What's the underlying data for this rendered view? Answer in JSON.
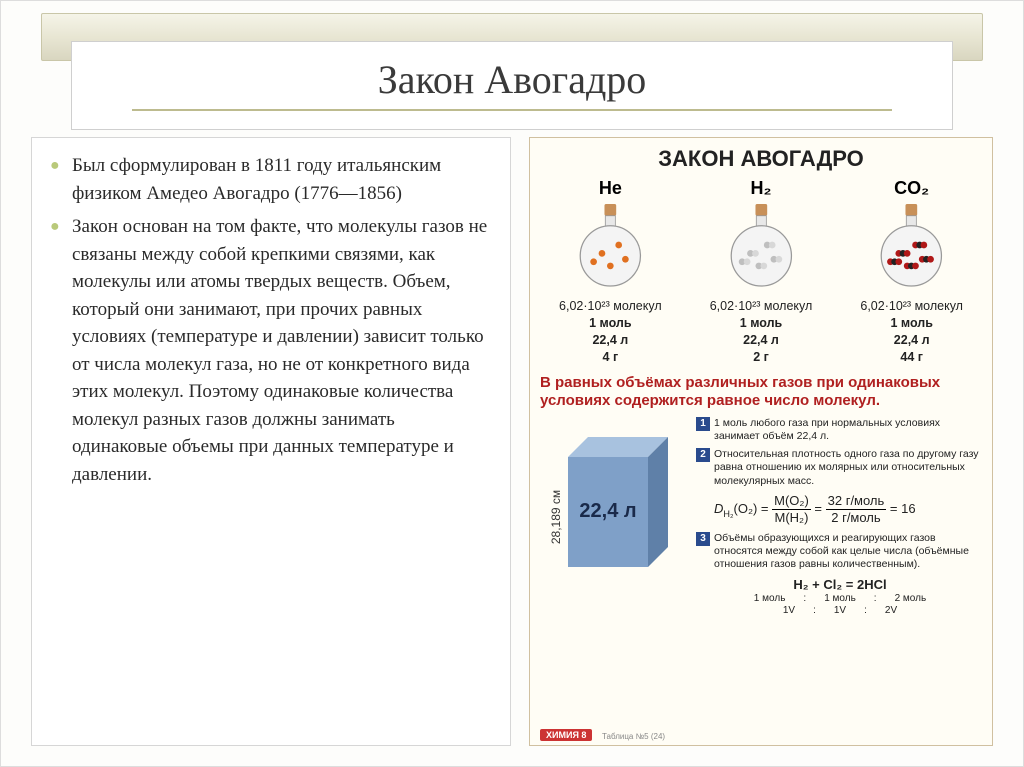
{
  "title": "Закон Авогадро",
  "bullets": [
    "Был сформулирован в 1811 году итальянским физиком Амедео Авогадро (1776—1856)",
    "Закон  основан на том факте, что молекулы газов не связаны между собой крепкими связями, как молекулы или атомы твердых веществ. Объем, который они занимают, при прочих равных условиях (температуре и давлении) зависит только от числа молекул газа, но не от конкретного вида этих молекул. Поэтому одинаковые количества молекул разных газов должны занимать одинаковые объемы при данных температуре и давлении."
  ],
  "poster": {
    "header": "ЗАКОН АВОГАДРО",
    "flasks": [
      {
        "formula": "He",
        "molecules_label": "6,02·10²³ молекул",
        "mole": "1 моль",
        "volume": "22,4 л",
        "mass": "4 г",
        "particle_color": "#e07020",
        "n": 5
      },
      {
        "formula": "H₂",
        "molecules_label": "6,02·10²³ молекул",
        "mole": "1 моль",
        "volume": "22,4 л",
        "mass": "2 г",
        "particle_color": "#bfbfbf",
        "n": 5
      },
      {
        "formula": "CO₂",
        "molecules_label": "6,02·10²³ молекул",
        "mole": "1 моль",
        "volume": "22,4 л",
        "mass": "44 г",
        "particle_color": "#b01818",
        "n": 5
      }
    ],
    "statement": "В равных объёмах различных газов при одинаковых условиях содержится равное число молекул.",
    "cube": {
      "side_label": "28,189 см",
      "volume_label": "22,4 л",
      "face_color": "#7fa0c8",
      "top_color": "#a8c2df",
      "side_color": "#5f80a8"
    },
    "notes": [
      "1 моль любого газа при нормальных условиях занимает объём 22,4 л.",
      "Относительная плотность одного газа по другому газу равна отношению их молярных или относительных молекулярных масс.",
      "Объёмы образующихся и реагирующих газов относятся между собой как целые числа (объёмные отношения газов равны количественным)."
    ],
    "density_formula": {
      "lhs": "D",
      "sub": "H₂",
      "arg": "(O₂)",
      "frac_top": "M(O₂)",
      "frac_bot": "M(H₂)",
      "num_top": "32 г/моль",
      "num_bot": "2 г/моль",
      "result": "16"
    },
    "equation": {
      "line1": "H₂   +   Cl₂   =   2HCl",
      "moles": [
        "1 моль",
        "1 моль",
        "2 моль"
      ],
      "vols": [
        "1V",
        "1V",
        "2V"
      ]
    },
    "badge": "ХИМИЯ 8",
    "badge_note": "Таблица №5 (24)"
  },
  "colors": {
    "accent_bullet": "#b9c97a",
    "ribbon_border": "#c9c6a8",
    "law_red": "#b02020",
    "note_num_bg": "#2a4b8d"
  }
}
